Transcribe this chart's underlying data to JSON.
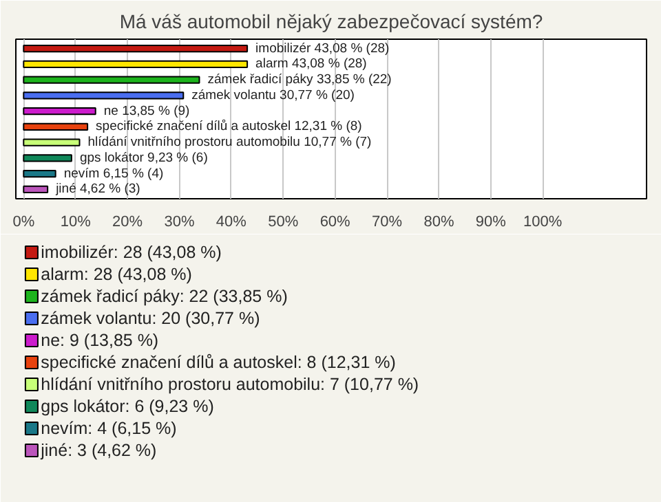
{
  "chart_data": {
    "type": "bar",
    "orientation": "horizontal",
    "title": "Má váš automobil nějaký zabezpečovací systém?",
    "categories": [
      null,
      null,
      null,
      null,
      null,
      null,
      null,
      null,
      null,
      null
    ],
    "xlim": [
      0,
      120
    ],
    "xticks": [
      {
        "value": 0,
        "label": "0%"
      },
      {
        "value": 10,
        "label": "10%"
      },
      {
        "value": 20,
        "label": "20%"
      },
      {
        "value": 30,
        "label": "30%"
      },
      {
        "value": 40,
        "label": "40%"
      },
      {
        "value": 50,
        "label": "50%"
      },
      {
        "value": 60,
        "label": "60%"
      },
      {
        "value": 70,
        "label": "70%"
      },
      {
        "value": 80,
        "label": "80%"
      },
      {
        "value": 90,
        "label": "90%"
      },
      {
        "value": 100,
        "label": "100%"
      }
    ],
    "grid": "x",
    "legend": "bottom",
    "series": [
      {
        "name": "imobilizér: 28 (43,08 %)",
        "color": "#c41a12",
        "values": [
          43.08,
          null,
          null,
          null,
          null,
          null,
          null,
          null,
          null,
          null
        ],
        "value_labels": [
          "imobilizér 43,08 % (28)",
          null,
          null,
          null,
          null,
          null,
          null,
          null,
          null,
          null
        ]
      },
      {
        "name": "alarm: 28 (43,08 %)",
        "color": "#ffe600",
        "values": [
          null,
          43.08,
          null,
          null,
          null,
          null,
          null,
          null,
          null,
          null
        ],
        "value_labels": [
          null,
          "alarm 43,08 % (28)",
          null,
          null,
          null,
          null,
          null,
          null,
          null,
          null
        ]
      },
      {
        "name": "zámek řadicí páky: 22 (33,85 %)",
        "color": "#1db41d",
        "values": [
          null,
          null,
          33.85,
          null,
          null,
          null,
          null,
          null,
          null,
          null
        ],
        "value_labels": [
          null,
          null,
          "zámek řadicí páky 33,85 % (22)",
          null,
          null,
          null,
          null,
          null,
          null,
          null
        ]
      },
      {
        "name": "zámek volantu: 20 (30,77 %)",
        "color": "#4a6ef0",
        "values": [
          null,
          null,
          null,
          30.77,
          null,
          null,
          null,
          null,
          null,
          null
        ],
        "value_labels": [
          null,
          null,
          null,
          "zámek volantu 30,77 % (20)",
          null,
          null,
          null,
          null,
          null,
          null
        ]
      },
      {
        "name": "ne: 9 (13,85 %)",
        "color": "#cc1ccc",
        "values": [
          null,
          null,
          null,
          null,
          13.85,
          null,
          null,
          null,
          null,
          null
        ],
        "value_labels": [
          null,
          null,
          null,
          null,
          "ne 13,85 % (9)",
          null,
          null,
          null,
          null,
          null
        ]
      },
      {
        "name": "specifické značení dílů a autoskel: 8 (12,31 %)",
        "color": "#e8420e",
        "values": [
          null,
          null,
          null,
          null,
          null,
          12.31,
          null,
          null,
          null,
          null
        ],
        "value_labels": [
          null,
          null,
          null,
          null,
          null,
          "specifické značení dílů a autoskel 12,31 % (8)",
          null,
          null,
          null,
          null
        ]
      },
      {
        "name": "hlídání vnitřního prostoru automobilu: 7 (10,77 %)",
        "color": "#c8ff78",
        "values": [
          null,
          null,
          null,
          null,
          null,
          null,
          10.77,
          null,
          null,
          null
        ],
        "value_labels": [
          null,
          null,
          null,
          null,
          null,
          null,
          "hlídání vnitřního prostoru automobilu 10,77 % (7)",
          null,
          null,
          null
        ]
      },
      {
        "name": "gps lokátor: 6 (9,23 %)",
        "color": "#10885a",
        "values": [
          null,
          null,
          null,
          null,
          null,
          null,
          null,
          9.23,
          null,
          null
        ],
        "value_labels": [
          null,
          null,
          null,
          null,
          null,
          null,
          null,
          "gps lokátor 9,23 % (6)",
          null,
          null
        ]
      },
      {
        "name": "nevím: 4 (6,15 %)",
        "color": "#1a7888",
        "values": [
          null,
          null,
          null,
          null,
          null,
          null,
          null,
          null,
          6.15,
          null
        ],
        "value_labels": [
          null,
          null,
          null,
          null,
          null,
          null,
          null,
          null,
          "nevím 6,15 % (4)",
          null
        ]
      },
      {
        "name": "jiné: 3 (4,62 %)",
        "color": "#bb55bb",
        "values": [
          null,
          null,
          null,
          null,
          null,
          null,
          null,
          null,
          null,
          4.62
        ],
        "value_labels": [
          null,
          null,
          null,
          null,
          null,
          null,
          null,
          null,
          null,
          "jiné 4,62 % (3)"
        ]
      }
    ]
  }
}
